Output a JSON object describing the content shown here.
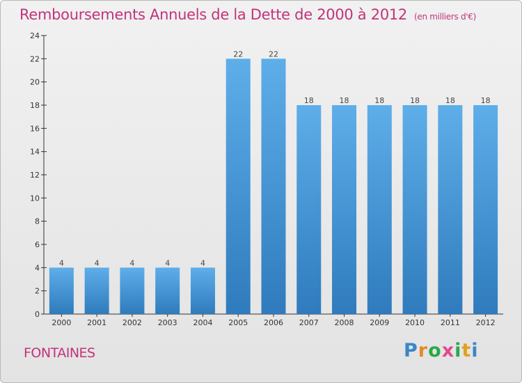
{
  "header": {
    "title": "Remboursements Annuels de la Dette de 2000 à 2012",
    "subtitle": "(en milliers d'€)"
  },
  "footer": {
    "city": "FONTAINES",
    "logo_text": "Proxiti",
    "logo_colors": [
      "#3a86c8",
      "#e48a2a",
      "#2aa84a",
      "#e04a8a",
      "#2aa84a",
      "#e0a020",
      "#3a86c8"
    ]
  },
  "colors": {
    "title": "#c2337a",
    "bar_top": "#5eaee9",
    "bar_bottom": "#2f7bbd"
  },
  "chart_data": {
    "type": "bar",
    "categories": [
      "2000",
      "2001",
      "2002",
      "2003",
      "2004",
      "2005",
      "2006",
      "2007",
      "2008",
      "2009",
      "2010",
      "2011",
      "2012"
    ],
    "values": [
      4,
      4,
      4,
      4,
      4,
      22,
      22,
      18,
      18,
      18,
      18,
      18,
      18
    ],
    "ylim": [
      0,
      24
    ],
    "yticks": [
      0,
      2,
      4,
      6,
      8,
      10,
      12,
      14,
      16,
      18,
      20,
      22,
      24
    ],
    "data_labels": true,
    "grid": false
  }
}
